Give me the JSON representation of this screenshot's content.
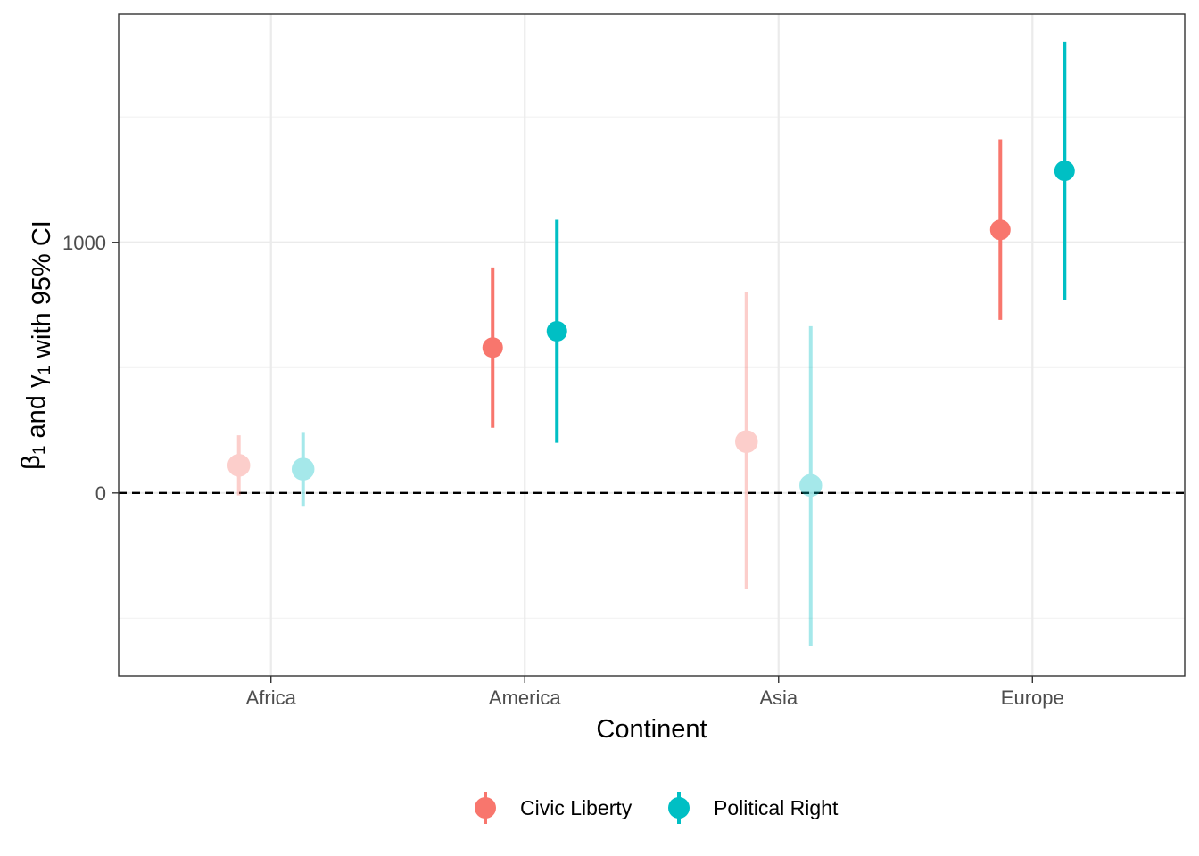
{
  "chart_data": {
    "type": "pointrange",
    "xlabel": "Continent",
    "ylabel": {
      "parts": [
        {
          "text": "β",
          "sub": false
        },
        {
          "text": "1",
          "sub": true
        },
        {
          "text": " and ",
          "sub": false
        },
        {
          "text": "γ",
          "sub": false
        },
        {
          "text": "1",
          "sub": true
        },
        {
          "text": " with 95% CI",
          "sub": false
        }
      ]
    },
    "categories": [
      "Africa",
      "America",
      "Asia",
      "Europe"
    ],
    "y_ticks": [
      0,
      1000
    ],
    "ylim": [
      -730,
      1910
    ],
    "reference_line": {
      "y": 0,
      "style": "dashed"
    },
    "grid": true,
    "legend_position": "bottom",
    "series": [
      {
        "name": "Civic Liberty",
        "color": "#F8766D",
        "points": [
          {
            "category": "Africa",
            "estimate": 110,
            "lower": -10,
            "upper": 230,
            "significant": false
          },
          {
            "category": "America",
            "estimate": 580,
            "lower": 260,
            "upper": 900,
            "significant": true
          },
          {
            "category": "Asia",
            "estimate": 205,
            "lower": -385,
            "upper": 800,
            "significant": false
          },
          {
            "category": "Europe",
            "estimate": 1050,
            "lower": 690,
            "upper": 1410,
            "significant": true
          }
        ]
      },
      {
        "name": "Political Right",
        "color": "#00BFC4",
        "points": [
          {
            "category": "Africa",
            "estimate": 95,
            "lower": -55,
            "upper": 240,
            "significant": false
          },
          {
            "category": "America",
            "estimate": 645,
            "lower": 200,
            "upper": 1090,
            "significant": true
          },
          {
            "category": "Asia",
            "estimate": 30,
            "lower": -610,
            "upper": 665,
            "significant": false
          },
          {
            "category": "Europe",
            "estimate": 1285,
            "lower": 770,
            "upper": 1800,
            "significant": true
          }
        ]
      }
    ]
  }
}
